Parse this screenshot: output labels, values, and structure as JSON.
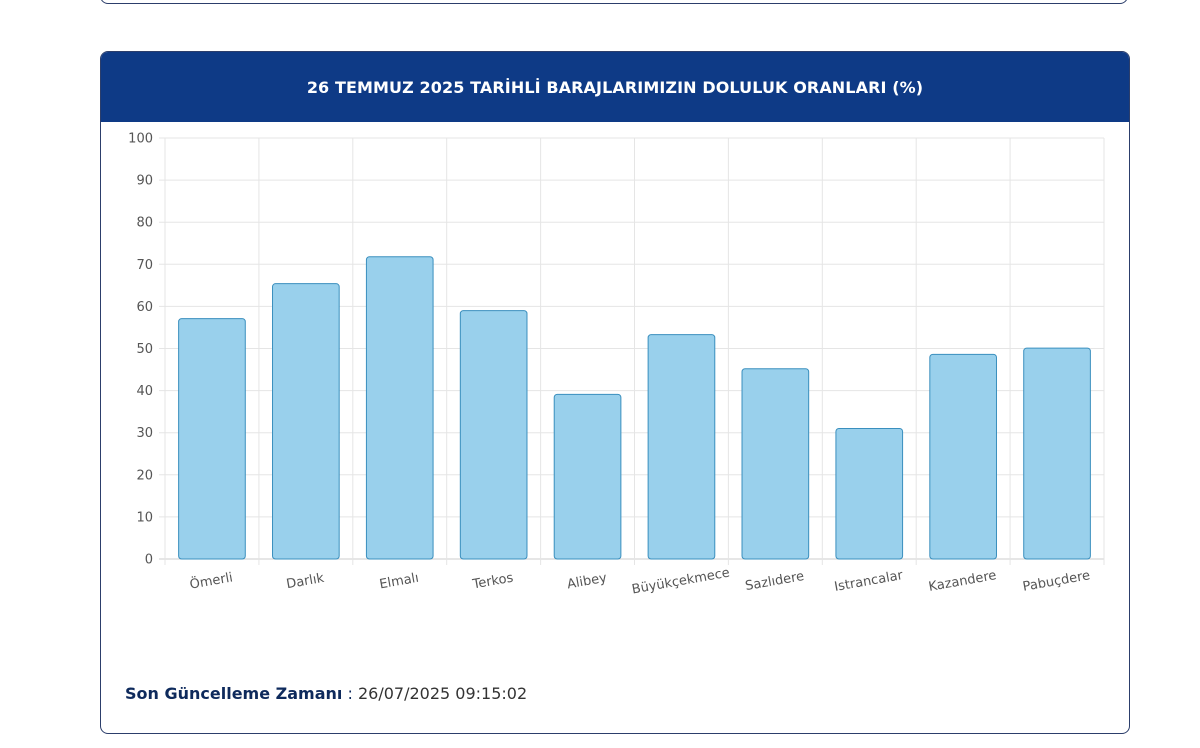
{
  "page": {
    "footer_label": "Son Güncelleme Zamanı",
    "footer_separator": " : ",
    "footer_value": "26/07/2025 09:15:02"
  },
  "colors": {
    "header_bg": "#0e3a86",
    "bar_fill": "#99d0ec",
    "bar_stroke": "#3a8fbe",
    "grid": "#e5e5e5"
  },
  "chart_data": {
    "type": "bar",
    "title": "26 TEMMUZ 2025 TARİHLİ BARAJLARIMIZIN DOLULUK ORANLARI (%)",
    "categories": [
      "Ömerli",
      "Darlık",
      "Elmalı",
      "Terkos",
      "Alibey",
      "Büyükçekmece",
      "Sazlıdere",
      "Istrancalar",
      "Kazandere",
      "Pabuçdere"
    ],
    "values": [
      57.1,
      65.4,
      71.8,
      59.0,
      39.1,
      53.3,
      45.2,
      31.0,
      48.6,
      50.1
    ],
    "yticks": [
      "0",
      "10",
      "20",
      "30",
      "40",
      "50",
      "60",
      "70",
      "80",
      "90",
      "100"
    ],
    "ylim": [
      0,
      100
    ],
    "xlabel": "",
    "ylabel": "",
    "grid": true,
    "legend": false
  }
}
